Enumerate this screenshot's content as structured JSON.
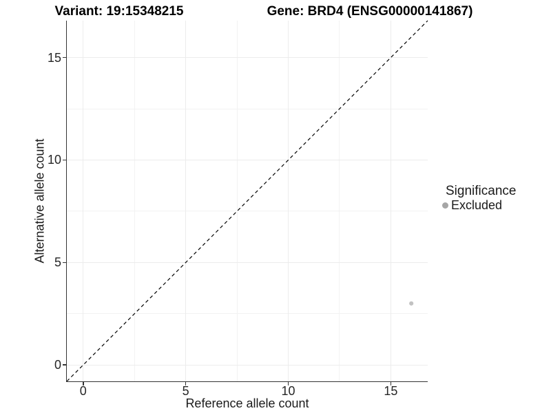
{
  "chart_data": {
    "type": "scatter",
    "titles": {
      "left": "Variant: 19:15348215",
      "right": "Gene: BRD4 (ENSG00000141867)"
    },
    "xlabel": "Reference allele count",
    "ylabel": "Alternative allele count",
    "xlim": [
      -0.8,
      16.8
    ],
    "ylim": [
      -0.8,
      16.8
    ],
    "xticks": [
      0,
      5,
      10,
      15
    ],
    "yticks": [
      0,
      5,
      10,
      15
    ],
    "minor_gridlines_x": [
      2.5,
      7.5,
      12.5
    ],
    "minor_gridlines_y": [
      2.5,
      7.5,
      12.5
    ],
    "grid": "major and minor gridlines, light gray on white panel",
    "series": [
      {
        "name": "Excluded",
        "marker": "circle",
        "color": "#c2c2c2",
        "points": [
          {
            "x": 16,
            "y": 3
          }
        ]
      }
    ],
    "reference_line": {
      "kind": "identity y = x",
      "from": [
        -0.8,
        -0.8
      ],
      "to": [
        16.8,
        16.8
      ],
      "style": "dashed",
      "color": "#000000"
    },
    "legend": {
      "title": "Significance",
      "position": "right",
      "items": [
        {
          "label": "Excluded",
          "marker_color": "#a6a6a6"
        }
      ]
    }
  },
  "colors": {
    "background": "#ffffff",
    "grid_major": "#ececec",
    "grid_minor": "#f2f2f2",
    "axis_line": "#333333",
    "tick_text": "#262626",
    "label_text": "#1a1a1a",
    "title_text": "#000000"
  }
}
